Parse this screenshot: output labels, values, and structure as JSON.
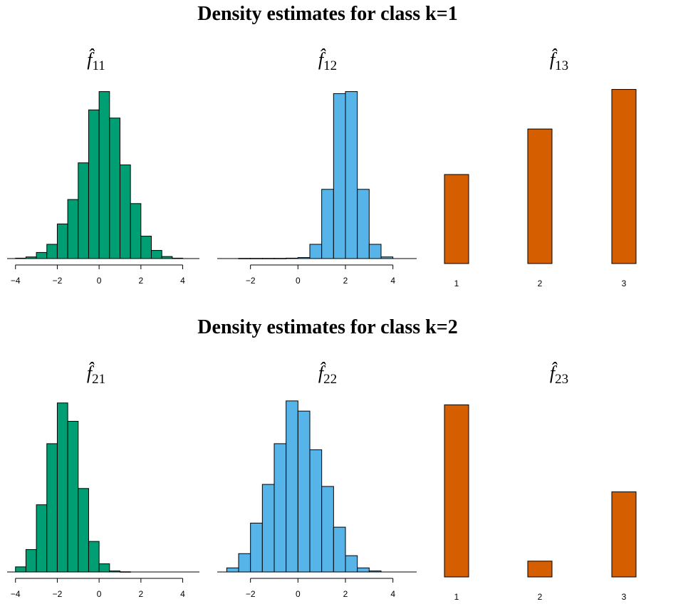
{
  "figure": {
    "titles": [
      "Density estimates for class k=1",
      "Density estimates for class k=2"
    ]
  },
  "chart_data": [
    {
      "type": "bar",
      "kind": "histogram",
      "title": "f̂11",
      "subscript": "11",
      "color": "#009E73",
      "bin_width": 0.5,
      "bin_starts": [
        -4,
        -3.5,
        -3,
        -2.5,
        -2,
        -1.5,
        -1,
        -0.5,
        0,
        0.5,
        1,
        1.5,
        2,
        2.5,
        3,
        3.5
      ],
      "values": [
        0.002,
        0.008,
        0.03,
        0.07,
        0.17,
        0.29,
        0.47,
        0.73,
        0.82,
        0.69,
        0.46,
        0.27,
        0.11,
        0.04,
        0.01,
        0.002
      ],
      "xlim": [
        -4.4,
        4.8
      ],
      "xticks": [
        -4,
        -2,
        0,
        2,
        4
      ],
      "xtick_labels": [
        "−4",
        "−2",
        "0",
        "2",
        "4"
      ]
    },
    {
      "type": "bar",
      "kind": "histogram",
      "title": "f̂12",
      "subscript": "12",
      "color": "#56B4E9",
      "bin_width": 0.5,
      "bin_starts": [
        -2.5,
        -2,
        -1.5,
        -1,
        -0.5,
        0,
        0.5,
        1,
        1.5,
        2,
        2.5,
        3,
        3.5
      ],
      "values": [
        0.001,
        0.001,
        0.001,
        0.001,
        0.002,
        0.005,
        0.07,
        0.34,
        0.81,
        0.82,
        0.34,
        0.07,
        0.008
      ],
      "xlim": [
        -3.4,
        5.0
      ],
      "xticks": [
        -2,
        0,
        2,
        4
      ],
      "xtick_labels": [
        "−2",
        "0",
        "2",
        "4"
      ]
    },
    {
      "type": "bar",
      "title": "f̂13",
      "subscript": "13",
      "color": "#D55E00",
      "categories": [
        "1",
        "2",
        "3"
      ],
      "values": [
        0.45,
        0.68,
        0.88
      ]
    },
    {
      "type": "bar",
      "kind": "histogram",
      "title": "f̂21",
      "subscript": "21",
      "color": "#009E73",
      "bin_width": 0.5,
      "bin_starts": [
        -4,
        -3.5,
        -3,
        -2.5,
        -2,
        -1.5,
        -1,
        -0.5,
        0,
        0.5,
        1
      ],
      "values": [
        0.025,
        0.11,
        0.33,
        0.63,
        0.83,
        0.74,
        0.41,
        0.15,
        0.04,
        0.005,
        0.001
      ],
      "xlim": [
        -4.4,
        4.8
      ],
      "xticks": [
        -4,
        -2,
        0,
        2,
        4
      ],
      "xtick_labels": [
        "−4",
        "−2",
        "0",
        "2",
        "4"
      ]
    },
    {
      "type": "bar",
      "kind": "histogram",
      "title": "f̂22",
      "subscript": "22",
      "color": "#56B4E9",
      "bin_width": 0.5,
      "bin_starts": [
        -3,
        -2.5,
        -2,
        -1.5,
        -1,
        -0.5,
        0,
        0.5,
        1,
        1.5,
        2,
        2.5,
        3
      ],
      "values": [
        0.02,
        0.09,
        0.24,
        0.43,
        0.63,
        0.84,
        0.79,
        0.6,
        0.42,
        0.22,
        0.08,
        0.02,
        0.005
      ],
      "xlim": [
        -3.4,
        5.0
      ],
      "xticks": [
        -2,
        0,
        2,
        4
      ],
      "xtick_labels": [
        "−2",
        "0",
        "2",
        "4"
      ]
    },
    {
      "type": "bar",
      "title": "f̂23",
      "subscript": "23",
      "color": "#D55E00",
      "categories": [
        "1",
        "2",
        "3"
      ],
      "values": [
        0.87,
        0.08,
        0.43
      ]
    }
  ]
}
